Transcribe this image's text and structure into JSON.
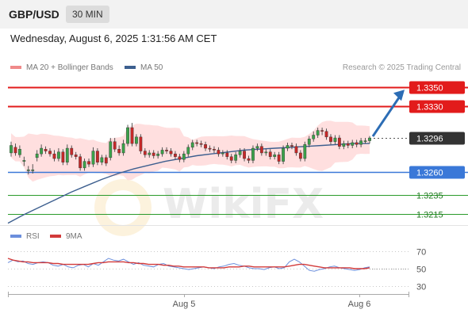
{
  "header": {
    "pair": "GBP/USD",
    "interval": "30 MIN"
  },
  "datetime": "Wednesday, August 6, 2025 1:31:56 AM CET",
  "credit": "Research © 2025 Trading Central",
  "watermark": "WikiFX",
  "colors": {
    "resistance": "#e21b1b",
    "support": "#3a78d8",
    "target": "#2a9a2a",
    "bull": "#3aa14a",
    "bear": "#c62828",
    "ma50": "#3d5f8f",
    "band": "#ffd4d4",
    "rsi": "#6c8fdc",
    "rsi_ma": "#d23a3a",
    "arrow": "#2c6db5"
  },
  "chart_data": [
    {
      "type": "candlestick",
      "legend": [
        {
          "name": "MA 20 + Bollinger Bands",
          "color": "#f08a8a"
        },
        {
          "name": "MA 50",
          "color": "#3d5f8f"
        }
      ],
      "x_tick_labels": [
        "Aug 5",
        "Aug 6"
      ],
      "ylim": [
        1.3203,
        1.3362
      ],
      "levels": [
        {
          "value": 1.335,
          "label": "1.3350",
          "kind": "resistance"
        },
        {
          "value": 1.333,
          "label": "1.3330",
          "kind": "resistance"
        },
        {
          "value": 1.3296,
          "label": "1.3296",
          "kind": "last"
        },
        {
          "value": 1.326,
          "label": "1.3260",
          "kind": "support"
        },
        {
          "value": 1.3235,
          "label": "1.3235",
          "kind": "target"
        },
        {
          "value": 1.3215,
          "label": "1.3215",
          "kind": "target"
        }
      ],
      "close": [
        1.3288,
        1.328,
        1.3284,
        1.3272,
        1.3262,
        1.3262,
        1.3279,
        1.3285,
        1.3282,
        1.3279,
        1.3274,
        1.3281,
        1.327,
        1.3285,
        1.3278,
        1.3276,
        1.3264,
        1.3271,
        1.3268,
        1.3282,
        1.327,
        1.3275,
        1.3269,
        1.3292,
        1.3284,
        1.328,
        1.329,
        1.3307,
        1.329,
        1.3297,
        1.3282,
        1.3278,
        1.328,
        1.3277,
        1.3279,
        1.3283,
        1.3282,
        1.3279,
        1.3276,
        1.3273,
        1.3279,
        1.3286,
        1.3291,
        1.329,
        1.3289,
        1.3285,
        1.3284,
        1.3283,
        1.3279,
        1.328,
        1.3276,
        1.3272,
        1.3278,
        1.3282,
        1.3274,
        1.3272,
        1.3285,
        1.3287,
        1.328,
        1.3281,
        1.3276,
        1.3278,
        1.3271,
        1.3285,
        1.3288,
        1.3287,
        1.328,
        1.3274,
        1.3289,
        1.3295,
        1.3299,
        1.3304,
        1.3303,
        1.3297,
        1.3292,
        1.3296,
        1.3287,
        1.329,
        1.3288,
        1.3291,
        1.3289,
        1.3293,
        1.3293,
        1.3296
      ],
      "open": [
        1.328,
        1.3286,
        1.3278,
        1.3272,
        1.3262,
        1.3262,
        1.3275,
        1.3279,
        1.3284,
        1.3282,
        1.3279,
        1.3274,
        1.3281,
        1.327,
        1.3285,
        1.3278,
        1.3276,
        1.3264,
        1.3271,
        1.3268,
        1.3282,
        1.327,
        1.3275,
        1.3275,
        1.3292,
        1.3284,
        1.328,
        1.329,
        1.3307,
        1.329,
        1.3297,
        1.3282,
        1.3278,
        1.328,
        1.3277,
        1.3279,
        1.3283,
        1.3282,
        1.3279,
        1.3276,
        1.3273,
        1.3279,
        1.3286,
        1.3291,
        1.329,
        1.3289,
        1.3285,
        1.3284,
        1.3283,
        1.3279,
        1.328,
        1.3276,
        1.3272,
        1.3278,
        1.3282,
        1.3274,
        1.3272,
        1.3285,
        1.3287,
        1.328,
        1.3281,
        1.3276,
        1.3278,
        1.3271,
        1.3285,
        1.3288,
        1.3287,
        1.328,
        1.3274,
        1.3289,
        1.3295,
        1.3299,
        1.3304,
        1.3303,
        1.3297,
        1.3292,
        1.3296,
        1.3287,
        1.329,
        1.3288,
        1.3291,
        1.3289,
        1.3293,
        1.3293
      ],
      "high": [
        1.3292,
        1.329,
        1.3288,
        1.3276,
        1.3266,
        1.3268,
        1.3283,
        1.3289,
        1.3287,
        1.3285,
        1.3283,
        1.3285,
        1.3284,
        1.3289,
        1.3288,
        1.3281,
        1.3279,
        1.3274,
        1.3274,
        1.3286,
        1.3285,
        1.3278,
        1.3278,
        1.3296,
        1.3296,
        1.3288,
        1.3294,
        1.331,
        1.3312,
        1.33,
        1.33,
        1.3285,
        1.3283,
        1.3283,
        1.3282,
        1.3286,
        1.3286,
        1.3285,
        1.3282,
        1.3279,
        1.3282,
        1.3289,
        1.3294,
        1.3294,
        1.3293,
        1.3292,
        1.3288,
        1.3287,
        1.3286,
        1.3283,
        1.3283,
        1.3279,
        1.3281,
        1.3285,
        1.3285,
        1.3277,
        1.3288,
        1.329,
        1.329,
        1.3284,
        1.3284,
        1.3281,
        1.3281,
        1.3288,
        1.3291,
        1.3291,
        1.329,
        1.3283,
        1.3292,
        1.3298,
        1.3303,
        1.3307,
        1.3307,
        1.3306,
        1.33,
        1.3299,
        1.3299,
        1.3293,
        1.3293,
        1.3294,
        1.3294,
        1.3296,
        1.3296,
        1.3298
      ],
      "low": [
        1.3276,
        1.3277,
        1.3275,
        1.3266,
        1.3257,
        1.3258,
        1.3271,
        1.3276,
        1.3279,
        1.3276,
        1.3271,
        1.3271,
        1.3267,
        1.3267,
        1.3275,
        1.3273,
        1.3261,
        1.3261,
        1.3265,
        1.3265,
        1.3267,
        1.3267,
        1.3266,
        1.3272,
        1.3281,
        1.3277,
        1.3277,
        1.3287,
        1.3287,
        1.3287,
        1.3279,
        1.3275,
        1.3275,
        1.3274,
        1.3274,
        1.3276,
        1.3279,
        1.3276,
        1.3273,
        1.327,
        1.327,
        1.3276,
        1.3283,
        1.3287,
        1.3286,
        1.3282,
        1.3281,
        1.328,
        1.3276,
        1.3276,
        1.3273,
        1.3269,
        1.3269,
        1.3275,
        1.3271,
        1.3269,
        1.3269,
        1.3282,
        1.3277,
        1.3277,
        1.3273,
        1.3273,
        1.3268,
        1.3268,
        1.3282,
        1.3284,
        1.3277,
        1.3271,
        1.3271,
        1.3286,
        1.3292,
        1.3296,
        1.3299,
        1.3294,
        1.3289,
        1.3289,
        1.3284,
        1.3284,
        1.3285,
        1.3285,
        1.3286,
        1.3286,
        1.329,
        1.329
      ],
      "ma50_values": [
        1.3205,
        1.3214,
        1.3222,
        1.323,
        1.3238,
        1.3245,
        1.3252,
        1.3258,
        1.3263,
        1.3267,
        1.3271,
        1.3274,
        1.3277,
        1.3279,
        1.3281,
        1.3283,
        1.3284,
        1.3285,
        1.3286,
        1.3287,
        1.3288,
        1.3289,
        1.329,
        1.329
      ],
      "projection": {
        "from": 1.3296,
        "to": 1.335
      }
    },
    {
      "type": "line",
      "legend": [
        {
          "name": "RSI",
          "color": "#6c8fdc"
        },
        {
          "name": "9MA",
          "color": "#d23a3a"
        }
      ],
      "ylim": [
        25,
        75
      ],
      "y_tick_labels": [
        "70",
        "50",
        "30"
      ],
      "y_ticks": [
        70,
        50,
        30
      ],
      "series": [
        {
          "name": "RSI",
          "values": [
            57,
            60,
            58,
            59,
            56,
            55,
            57,
            58,
            57,
            54,
            53,
            55,
            52,
            51,
            54,
            55,
            52,
            56,
            54,
            58,
            62,
            60,
            59,
            61,
            58,
            55,
            57,
            54,
            53,
            52,
            55,
            56,
            53,
            52,
            51,
            50,
            49,
            50,
            51,
            52,
            51,
            50,
            52,
            53,
            55,
            56,
            54,
            53,
            51,
            50,
            50,
            49,
            51,
            52,
            50,
            51,
            58,
            61,
            58,
            53,
            48,
            47,
            49,
            50,
            52,
            53,
            51,
            50,
            49,
            48,
            49,
            51,
            52
          ]
        },
        {
          "name": "9MA",
          "values": [
            62,
            60,
            59,
            58,
            58,
            57,
            57,
            57,
            57,
            56,
            56,
            55,
            55,
            55,
            55,
            55,
            55,
            56,
            57,
            57,
            58,
            58,
            58,
            58,
            57,
            57,
            56,
            56,
            55,
            55,
            55,
            54,
            54,
            53,
            53,
            52,
            52,
            52,
            52,
            52,
            51,
            51,
            51,
            51,
            52,
            52,
            52,
            53,
            53,
            52,
            52,
            52,
            52,
            52,
            52,
            52,
            53,
            54,
            55,
            55,
            54,
            53,
            52,
            51,
            51,
            51,
            51,
            51,
            51,
            50,
            50,
            50,
            51
          ]
        }
      ],
      "x_tick_labels": [
        "Aug 5",
        "Aug 6"
      ]
    }
  ]
}
